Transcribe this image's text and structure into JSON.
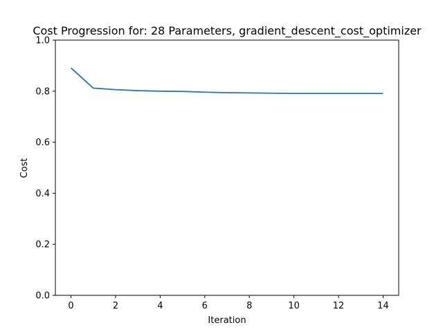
{
  "chart_data": {
    "type": "line",
    "title": "Cost Progression for: 28 Parameters, gradient_descent_cost_optimizer",
    "xlabel": "Iteration",
    "ylabel": "Cost",
    "xlim": [
      -0.7,
      14.7
    ],
    "ylim": [
      0,
      1.0
    ],
    "xticks": [
      0,
      2,
      4,
      6,
      8,
      10,
      12,
      14
    ],
    "yticks": [
      0.0,
      0.2,
      0.4,
      0.6,
      0.8,
      1.0
    ],
    "xtick_labels": [
      "0",
      "2",
      "4",
      "6",
      "8",
      "10",
      "12",
      "14"
    ],
    "ytick_labels": [
      "0.0",
      "0.2",
      "0.4",
      "0.6",
      "0.8",
      "1.0"
    ],
    "grid": false,
    "series": [
      {
        "x": [
          0,
          1,
          2,
          3,
          4,
          5,
          6,
          7,
          8,
          9,
          10,
          11,
          12,
          13,
          14
        ],
        "y": [
          0.891,
          0.812,
          0.806,
          0.802,
          0.8,
          0.799,
          0.796,
          0.794,
          0.793,
          0.792,
          0.791,
          0.791,
          0.791,
          0.791,
          0.791
        ],
        "color": "#1f77b4"
      }
    ]
  }
}
